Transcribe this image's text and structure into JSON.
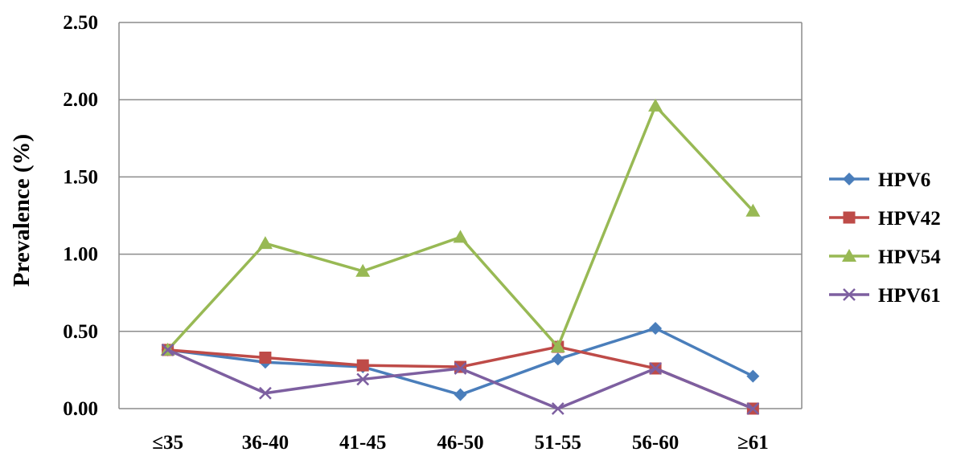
{
  "chart_data": {
    "type": "line",
    "title": "",
    "xlabel": "",
    "ylabel": "Prevalence (%)",
    "ylim": [
      0,
      2.5
    ],
    "yticks": [
      "0.00",
      "0.50",
      "1.00",
      "1.50",
      "2.00",
      "2.50"
    ],
    "grid": true,
    "legend_position": "right",
    "categories": [
      "≤35",
      "36-40",
      "41-45",
      "46-50",
      "51-55",
      "56-60",
      "≥61"
    ],
    "series": [
      {
        "name": "HPV6",
        "color": "#4a7ebb",
        "marker": "diamond",
        "values": [
          0.38,
          0.3,
          0.27,
          0.09,
          0.32,
          0.52,
          0.21
        ]
      },
      {
        "name": "HPV42",
        "color": "#be4b48",
        "marker": "square",
        "values": [
          0.38,
          0.33,
          0.28,
          0.27,
          0.4,
          0.26,
          0.0
        ]
      },
      {
        "name": "HPV54",
        "color": "#98b954",
        "marker": "triangle",
        "values": [
          0.38,
          1.07,
          0.89,
          1.11,
          0.4,
          1.96,
          1.28
        ]
      },
      {
        "name": "HPV61",
        "color": "#7d5fa0",
        "marker": "x",
        "values": [
          0.38,
          0.1,
          0.19,
          0.26,
          0.0,
          0.26,
          0.0
        ]
      }
    ]
  }
}
